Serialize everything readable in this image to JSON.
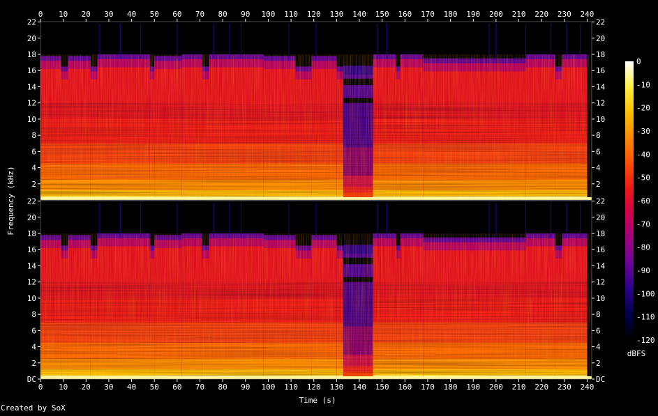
{
  "chart_data": {
    "type": "heatmap",
    "title": "",
    "xlabel": "Time (s)",
    "ylabel": "Frequency (kHz)",
    "x_ticks": [
      "0",
      "10",
      "20",
      "30",
      "40",
      "50",
      "60",
      "70",
      "80",
      "90",
      "100",
      "110",
      "120",
      "130",
      "140",
      "150",
      "160",
      "170",
      "180",
      "190",
      "200",
      "210",
      "220",
      "230",
      "240"
    ],
    "xlim": [
      0,
      242
    ],
    "channels": [
      {
        "y_ticks": [
          "2",
          "4",
          "6",
          "8",
          "10",
          "12",
          "14",
          "16",
          "18",
          "20",
          "22"
        ],
        "ylim": [
          0,
          22.05
        ]
      },
      {
        "y_ticks": [
          "DC",
          "2",
          "4",
          "6",
          "8",
          "10",
          "12",
          "14",
          "16",
          "18",
          "20",
          "22"
        ],
        "ylim": [
          0,
          22.05
        ]
      }
    ],
    "colorbar": {
      "label": "dBFS",
      "ticks": [
        "0",
        "-10",
        "-20",
        "-30",
        "-40",
        "-50",
        "-60",
        "-70",
        "-80",
        "-90",
        "-100",
        "-110",
        "-120"
      ],
      "range": [
        -120,
        0
      ]
    },
    "segments": [
      {
        "start": 0,
        "end": 9,
        "cutoff_khz": 17.8
      },
      {
        "start": 9,
        "end": 12,
        "cutoff_khz": 16.5
      },
      {
        "start": 12,
        "end": 22,
        "cutoff_khz": 17.8
      },
      {
        "start": 22,
        "end": 25,
        "cutoff_khz": 16.5
      },
      {
        "start": 25,
        "end": 48,
        "cutoff_khz": 18.0
      },
      {
        "start": 48,
        "end": 50,
        "cutoff_khz": 16.5
      },
      {
        "start": 50,
        "end": 62,
        "cutoff_khz": 17.8
      },
      {
        "start": 62,
        "end": 71,
        "cutoff_khz": 18.0
      },
      {
        "start": 71,
        "end": 74,
        "cutoff_khz": 16.5
      },
      {
        "start": 74,
        "end": 98,
        "cutoff_khz": 18.0
      },
      {
        "start": 98,
        "end": 112,
        "cutoff_khz": 17.8
      },
      {
        "start": 112,
        "end": 119,
        "cutoff_khz": 16.5
      },
      {
        "start": 119,
        "end": 130,
        "cutoff_khz": 17.8
      },
      {
        "start": 130,
        "end": 133,
        "cutoff_khz": 16.5
      },
      {
        "start": 133,
        "end": 146,
        "cutoff_khz": 17.2
      },
      {
        "start": 146,
        "end": 156,
        "cutoff_khz": 18.0
      },
      {
        "start": 156,
        "end": 158,
        "cutoff_khz": 16.5
      },
      {
        "start": 158,
        "end": 168,
        "cutoff_khz": 18.0
      },
      {
        "start": 168,
        "end": 213,
        "cutoff_khz": 17.5
      },
      {
        "start": 213,
        "end": 226,
        "cutoff_khz": 18.0
      },
      {
        "start": 226,
        "end": 229,
        "cutoff_khz": 16.5
      },
      {
        "start": 229,
        "end": 240,
        "cutoff_khz": 18.0
      }
    ],
    "quiet_section": {
      "start": 133,
      "end": 146
    }
  },
  "footer": {
    "credit": "Created by SoX"
  },
  "colors": {
    "background": "#000000",
    "palette": [
      "#000000",
      "#00004a",
      "#2a0088",
      "#6a0098",
      "#a00080",
      "#d0004a",
      "#f01818",
      "#ff5000",
      "#ff8a00",
      "#ffc000",
      "#fff040",
      "#ffffff"
    ]
  }
}
